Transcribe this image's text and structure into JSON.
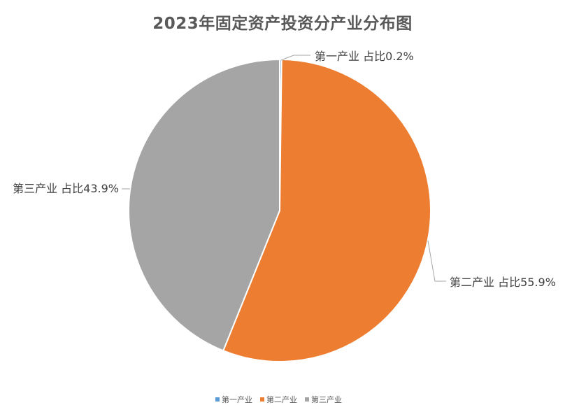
{
  "chart_data": {
    "type": "pie",
    "title": "2023年固定资产投资分产业分布图",
    "categories": [
      "第一产业",
      "第二产业",
      "第三产业"
    ],
    "values": [
      0.2,
      55.9,
      43.9
    ],
    "labels": [
      "第一产业 占比0.2%",
      "第二产业 占比55.9%",
      "第三产业 占比43.9%"
    ],
    "colors": [
      "#5B9BD5",
      "#ED7D31",
      "#A5A5A5"
    ],
    "legend": {
      "position": "bottom",
      "entries": [
        "第一产业",
        "第二产业",
        "第三产业"
      ]
    }
  }
}
